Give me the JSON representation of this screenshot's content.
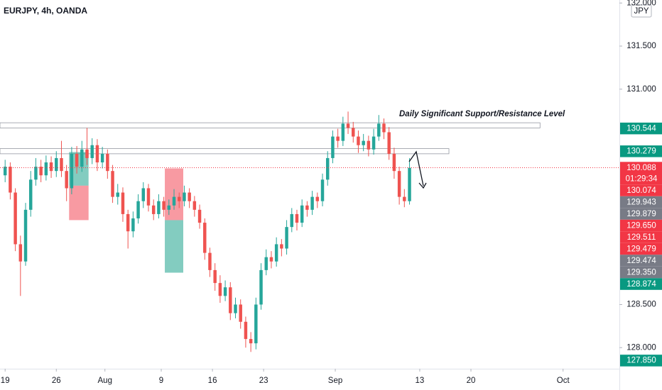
{
  "chart_data": {
    "type": "candlestick",
    "title": "EURJPY, 4h, OANDA",
    "currency": "JPY",
    "annotation": "Daily Significant Support/Resistance Level",
    "up_color": "#26a69a",
    "down_color": "#ef5350",
    "xlim": [
      -1,
      120
    ],
    "ylim": [
      127.755,
      132.035
    ],
    "xticks": [
      {
        "value": 0,
        "label": "19"
      },
      {
        "value": 10,
        "label": "26"
      },
      {
        "value": 19.5,
        "label": "Aug"
      },
      {
        "value": 30.5,
        "label": "9"
      },
      {
        "value": 40.5,
        "label": "16"
      },
      {
        "value": 50.5,
        "label": "23"
      },
      {
        "value": 64.5,
        "label": "Sep"
      },
      {
        "value": 81,
        "label": "13"
      },
      {
        "value": 91,
        "label": "20"
      },
      {
        "value": 109,
        "label": "Oct"
      }
    ],
    "yticks": [
      {
        "value": 132,
        "label": "132.000"
      },
      {
        "value": 131.5,
        "label": "131.500"
      },
      {
        "value": 131,
        "label": "131.000"
      },
      {
        "value": 128.5,
        "label": "128.500"
      },
      {
        "value": 128,
        "label": "128.000"
      }
    ],
    "ohlc": [
      [
        130.0,
        130.18,
        129.92,
        130.1
      ],
      [
        130.1,
        130.15,
        129.72,
        129.8
      ],
      [
        129.8,
        129.85,
        129.12,
        129.2
      ],
      [
        129.2,
        129.3,
        128.6,
        129.0
      ],
      [
        129.0,
        129.68,
        128.95,
        129.6
      ],
      [
        129.6,
        130.05,
        129.52,
        129.95
      ],
      [
        129.95,
        130.2,
        129.88,
        130.1
      ],
      [
        130.1,
        130.18,
        129.92,
        130.0
      ],
      [
        130.0,
        130.23,
        129.94,
        130.15
      ],
      [
        130.15,
        130.22,
        129.97,
        130.05
      ],
      [
        130.05,
        130.28,
        129.98,
        130.2
      ],
      [
        130.2,
        130.4,
        129.98,
        130.05
      ],
      [
        130.05,
        130.12,
        129.7,
        129.85
      ],
      [
        129.85,
        130.33,
        129.78,
        130.25
      ],
      [
        130.25,
        130.34,
        130.02,
        130.1
      ],
      [
        130.1,
        130.4,
        130.04,
        130.3
      ],
      [
        130.3,
        130.55,
        130.12,
        130.2
      ],
      [
        130.2,
        130.43,
        130.13,
        130.35
      ],
      [
        130.35,
        130.42,
        130.05,
        130.15
      ],
      [
        130.15,
        130.33,
        130.08,
        130.25
      ],
      [
        130.25,
        130.3,
        129.96,
        130.05
      ],
      [
        130.05,
        130.12,
        129.68,
        129.75
      ],
      [
        129.75,
        129.9,
        129.66,
        129.8
      ],
      [
        129.8,
        129.86,
        129.46,
        129.55
      ],
      [
        129.55,
        129.6,
        129.15,
        129.35
      ],
      [
        129.35,
        129.58,
        129.28,
        129.5
      ],
      [
        129.5,
        129.78,
        129.44,
        129.7
      ],
      [
        129.7,
        129.92,
        129.62,
        129.85
      ],
      [
        129.85,
        129.9,
        129.58,
        129.65
      ],
      [
        129.65,
        129.72,
        129.48,
        129.55
      ],
      [
        129.55,
        129.78,
        129.5,
        129.7
      ],
      [
        129.7,
        129.75,
        129.52,
        129.6
      ],
      [
        129.6,
        129.72,
        129.54,
        129.65
      ],
      [
        129.65,
        129.84,
        129.6,
        129.75
      ],
      [
        129.75,
        129.8,
        129.62,
        129.7
      ],
      [
        129.7,
        129.88,
        129.64,
        129.8
      ],
      [
        129.8,
        129.85,
        129.62,
        129.7
      ],
      [
        129.7,
        129.76,
        129.52,
        129.6
      ],
      [
        129.6,
        129.66,
        129.38,
        129.45
      ],
      [
        129.45,
        129.5,
        129.02,
        129.1
      ],
      [
        129.1,
        129.16,
        128.82,
        128.9
      ],
      [
        128.9,
        128.98,
        128.66,
        128.75
      ],
      [
        128.75,
        128.84,
        128.52,
        128.6
      ],
      [
        128.6,
        128.78,
        128.54,
        128.7
      ],
      [
        128.7,
        128.76,
        128.32,
        128.4
      ],
      [
        128.4,
        128.58,
        128.34,
        128.5
      ],
      [
        128.5,
        128.56,
        128.22,
        128.3
      ],
      [
        128.3,
        128.36,
        128.0,
        128.1
      ],
      [
        128.1,
        128.18,
        127.95,
        128.05
      ],
      [
        128.05,
        128.58,
        127.98,
        128.5
      ],
      [
        128.5,
        128.98,
        128.44,
        128.9
      ],
      [
        128.9,
        129.14,
        128.84,
        129.05
      ],
      [
        129.05,
        129.12,
        128.92,
        129.0
      ],
      [
        129.0,
        129.28,
        128.94,
        129.2
      ],
      [
        129.2,
        129.26,
        129.06,
        129.15
      ],
      [
        129.15,
        129.48,
        129.08,
        129.4
      ],
      [
        129.4,
        129.62,
        129.34,
        129.55
      ],
      [
        129.55,
        129.6,
        129.36,
        129.45
      ],
      [
        129.45,
        129.72,
        129.4,
        129.65
      ],
      [
        129.65,
        129.7,
        129.52,
        129.6
      ],
      [
        129.6,
        129.82,
        129.54,
        129.75
      ],
      [
        129.75,
        129.8,
        129.62,
        129.7
      ],
      [
        129.7,
        130.02,
        129.64,
        129.95
      ],
      [
        129.95,
        130.28,
        129.88,
        130.2
      ],
      [
        130.2,
        130.52,
        130.14,
        130.45
      ],
      [
        130.45,
        130.54,
        130.32,
        130.4
      ],
      [
        130.4,
        130.68,
        130.34,
        130.6
      ],
      [
        130.6,
        130.74,
        130.48,
        130.55
      ],
      [
        130.55,
        130.62,
        130.38,
        130.45
      ],
      [
        130.45,
        130.52,
        130.26,
        130.35
      ],
      [
        130.35,
        130.48,
        130.28,
        130.4
      ],
      [
        130.4,
        130.46,
        130.22,
        130.3
      ],
      [
        130.3,
        130.54,
        130.24,
        130.45
      ],
      [
        130.45,
        130.7,
        130.4,
        130.6
      ],
      [
        130.6,
        130.66,
        130.42,
        130.5
      ],
      [
        130.5,
        130.56,
        130.18,
        130.25
      ],
      [
        130.25,
        130.32,
        129.96,
        130.05
      ],
      [
        130.05,
        130.1,
        129.66,
        129.75
      ],
      [
        129.75,
        129.84,
        129.63,
        129.7
      ],
      [
        129.7,
        130.2,
        129.66,
        130.088
      ]
    ],
    "zones": [
      {
        "top": 130.61,
        "bottom": 130.55,
        "end": 104.5
      },
      {
        "top": 130.31,
        "bottom": 130.25,
        "end": 86.7
      }
    ],
    "positions": [
      {
        "start": 12.5,
        "end": 16.3,
        "entry": 129.88,
        "target": 130.27,
        "stop": 129.48
      },
      {
        "start": 31.2,
        "end": 34.8,
        "entry": 129.48,
        "target": 128.87,
        "stop": 130.08
      }
    ],
    "countdown": "01:29:34",
    "badges": [
      {
        "value": 130.544,
        "color": "#089981"
      },
      {
        "value": 130.279,
        "color": "#089981"
      },
      {
        "value": 130.088,
        "color": "#f23645"
      },
      {
        "value": 130.074,
        "color": "#f23645"
      },
      {
        "value": 129.943,
        "color": "#787b86"
      },
      {
        "value": 129.879,
        "color": "#787b86"
      },
      {
        "value": 129.65,
        "label": "129.650",
        "color": "#f23645"
      },
      {
        "value": 129.511,
        "color": "#f23645"
      },
      {
        "value": 129.479,
        "color": "#f23645"
      },
      {
        "value": 129.474,
        "color": "#787b86"
      },
      {
        "value": 129.35,
        "label": "129.350",
        "color": "#787b86"
      },
      {
        "value": 128.874,
        "color": "#089981"
      },
      {
        "value": 127.85,
        "label": "127.850",
        "color": "#089981"
      }
    ]
  }
}
